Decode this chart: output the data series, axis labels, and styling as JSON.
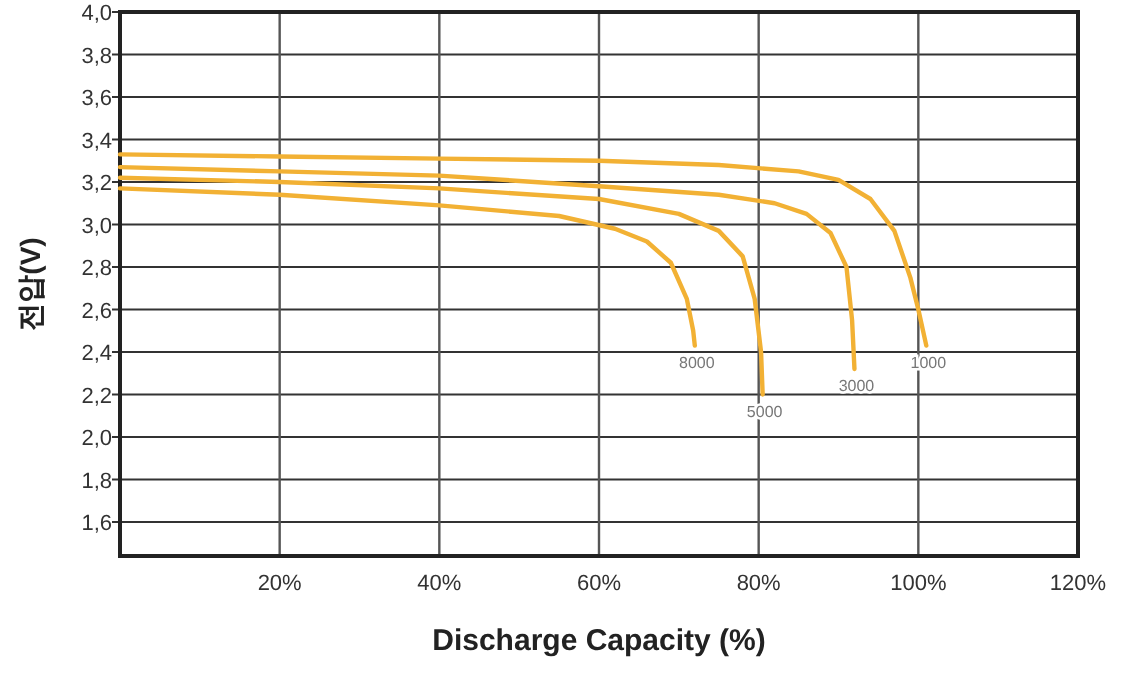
{
  "chart_data": {
    "type": "line",
    "xlabel": "Discharge Capacity  (%)",
    "ylabel": "전압(V)",
    "xlim": [
      0,
      120
    ],
    "ylim": [
      1.44,
      4.0
    ],
    "xticks": [
      {
        "value": 20,
        "label": "20%"
      },
      {
        "value": 40,
        "label": "40%"
      },
      {
        "value": 60,
        "label": "60%"
      },
      {
        "value": 80,
        "label": "80%"
      },
      {
        "value": 100,
        "label": "100%"
      },
      {
        "value": 120,
        "label": "120%"
      }
    ],
    "yticks": [
      {
        "value": 1.6,
        "label": "1,6"
      },
      {
        "value": 1.8,
        "label": "1,8"
      },
      {
        "value": 2.0,
        "label": "2,0"
      },
      {
        "value": 2.2,
        "label": "2,2"
      },
      {
        "value": 2.4,
        "label": "2,4"
      },
      {
        "value": 2.6,
        "label": "2,6"
      },
      {
        "value": 2.8,
        "label": "2,8"
      },
      {
        "value": 3.0,
        "label": "3,0"
      },
      {
        "value": 3.2,
        "label": "3,2"
      },
      {
        "value": 3.4,
        "label": "3,4"
      },
      {
        "value": 3.6,
        "label": "3,6"
      },
      {
        "value": 3.8,
        "label": "3,8"
      },
      {
        "value": 4.0,
        "label": "4,0"
      }
    ],
    "grid": true,
    "marker": "none",
    "line_style": "solid",
    "series": [
      {
        "name": "1000",
        "color": "#f2b134",
        "x": [
          0,
          20,
          40,
          60,
          75,
          85,
          90,
          94,
          97,
          99,
          100,
          101
        ],
        "values": [
          3.33,
          3.32,
          3.31,
          3.3,
          3.28,
          3.25,
          3.21,
          3.12,
          2.97,
          2.75,
          2.6,
          2.43
        ]
      },
      {
        "name": "3000",
        "color": "#f2b134",
        "x": [
          0,
          20,
          40,
          60,
          75,
          82,
          86,
          89,
          91,
          91.7,
          92
        ],
        "values": [
          3.27,
          3.25,
          3.23,
          3.18,
          3.14,
          3.1,
          3.05,
          2.96,
          2.8,
          2.55,
          2.32
        ]
      },
      {
        "name": "5000",
        "color": "#f2b134",
        "x": [
          0,
          20,
          40,
          60,
          70,
          75,
          78,
          79.5,
          80.3,
          80.5
        ],
        "values": [
          3.22,
          3.2,
          3.17,
          3.12,
          3.05,
          2.97,
          2.85,
          2.65,
          2.4,
          2.2
        ]
      },
      {
        "name": "8000",
        "color": "#f2b134",
        "x": [
          0,
          20,
          40,
          55,
          62,
          66,
          69,
          71,
          71.8,
          72
        ],
        "values": [
          3.17,
          3.14,
          3.09,
          3.04,
          2.98,
          2.92,
          2.82,
          2.65,
          2.5,
          2.43
        ]
      }
    ]
  }
}
